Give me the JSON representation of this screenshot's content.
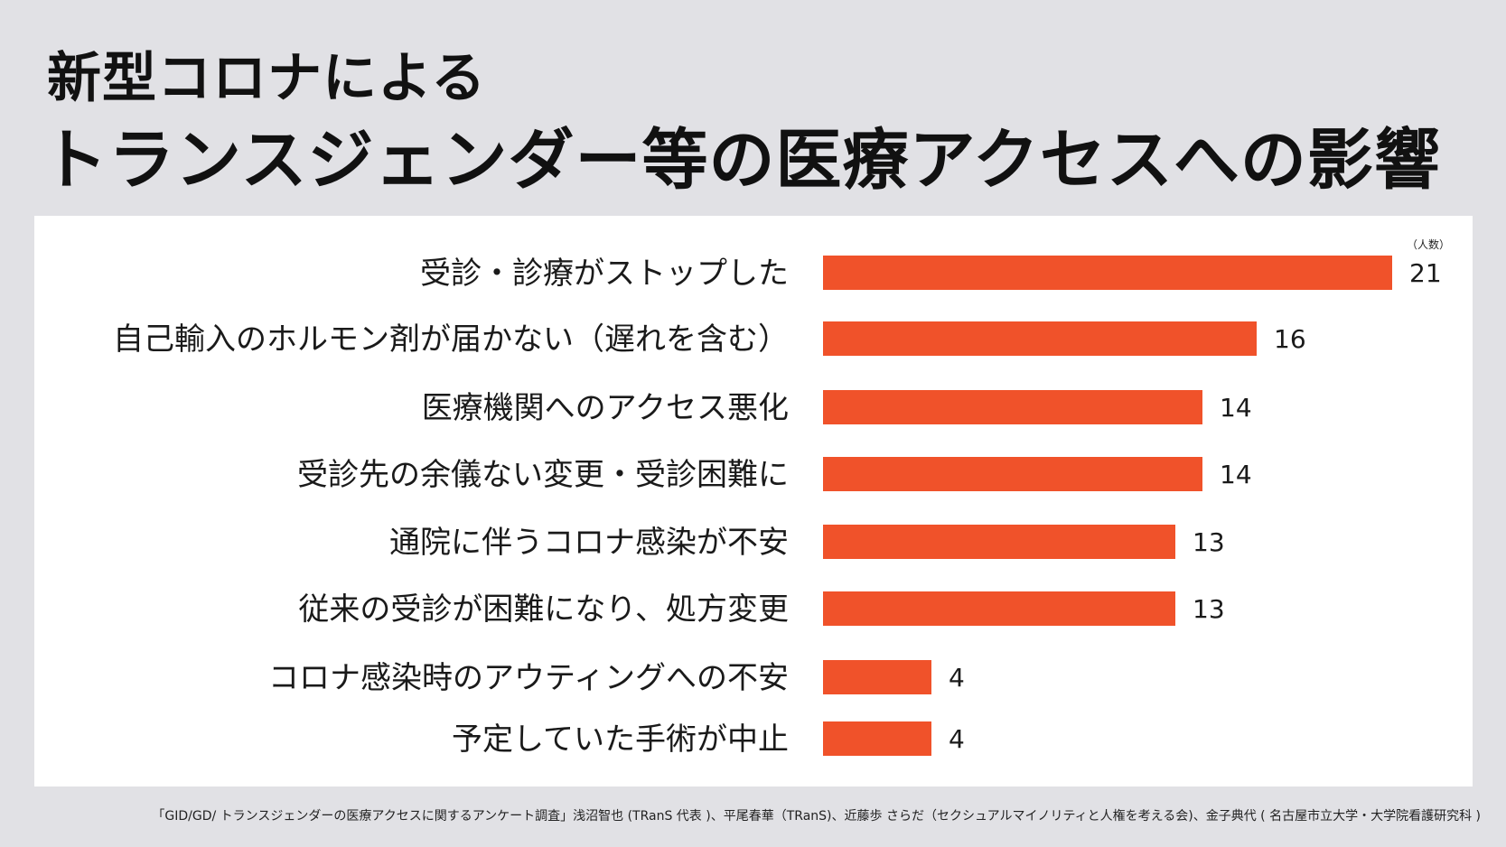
{
  "title_line1": "新型コロナによる",
  "title_line2": "トランスジェンダー等の医療アクセスへの影響",
  "source": "「GID/GD/ トランスジェンダーの医療アクセスに関するアンケート調査」浅沼智也 (TRanS 代表 )、平尾春華（TRanS)、近藤歩 さらだ（セクシュアルマイノリティと人権を考える会)、金子典代 ( 名古屋市立大学・大学院看護研究科 )",
  "colors": {
    "bar": "#f0522a",
    "background": "#e1e1e5",
    "panel": "#ffffff"
  },
  "chart_data": {
    "type": "bar",
    "orientation": "horizontal",
    "unit_label": "（人数）",
    "categories": [
      "受診・診療がストップした",
      "自己輸入のホルモン剤が届かない（遅れを含む）",
      "医療機関へのアクセス悪化",
      "受診先の余儀ない変更・受診困難に",
      "通院に伴うコロナ感染が不安",
      "従来の受診が困難になり、処方変更",
      "コロナ感染時のアウティングへの不安",
      "予定していた手術が中止"
    ],
    "values": [
      21,
      16,
      14,
      14,
      13,
      13,
      4,
      4
    ],
    "xlim": [
      0,
      21
    ]
  }
}
